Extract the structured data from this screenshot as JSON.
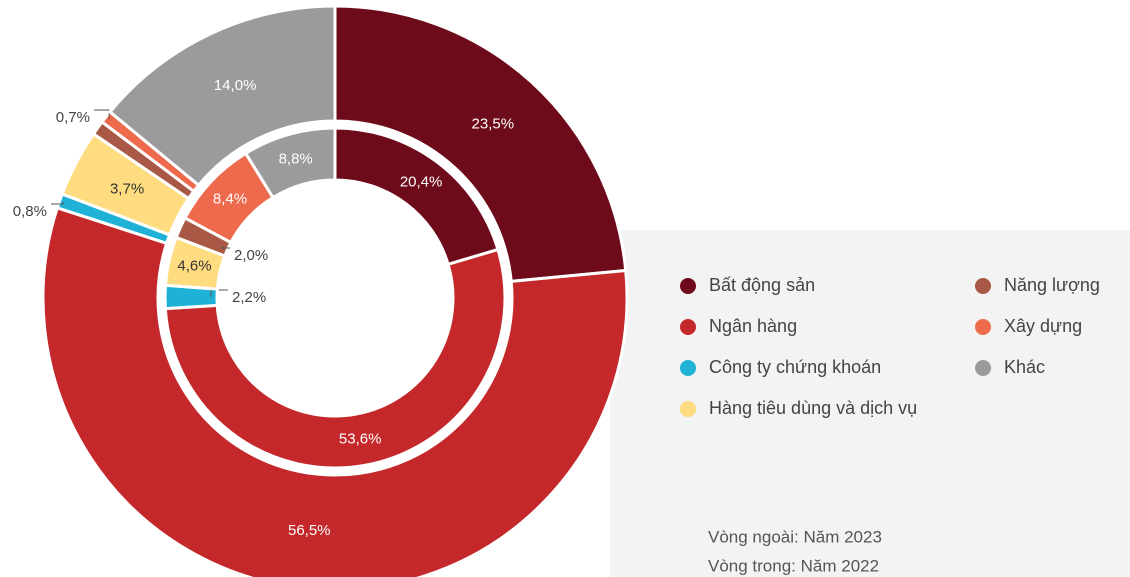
{
  "chart_data": {
    "type": "nested-donut",
    "categories": [
      "Bất động sản",
      "Ngân hàng",
      "Công ty chứng khoán",
      "Hàng tiêu dùng và dịch vụ",
      "Năng lượng",
      "Xây dựng",
      "Khác"
    ],
    "colors": [
      "#6e0b1a",
      "#c4282a",
      "#1fb2d6",
      "#fedc7f",
      "#a85845",
      "#ee6a4c",
      "#9b9b9e"
    ],
    "series": [
      {
        "name": "Vòng ngoài: Năm 2023",
        "ring": "outer",
        "values": [
          23.5,
          56.5,
          0.8,
          3.7,
          0.8,
          0.7,
          14.0
        ],
        "value_labels": [
          "23,5%",
          "56,5%",
          "0,8%",
          "3,7%",
          null,
          "0,7%",
          "14,0%"
        ]
      },
      {
        "name": "Vòng trong: Năm 2022",
        "ring": "inner",
        "values": [
          20.4,
          53.6,
          2.2,
          4.6,
          2.0,
          8.4,
          8.8
        ],
        "value_labels": [
          "20,4%",
          "53,6%",
          "2,2%",
          "4,6%",
          "2,0%",
          "8,4%",
          "8,8%"
        ]
      }
    ]
  }
}
